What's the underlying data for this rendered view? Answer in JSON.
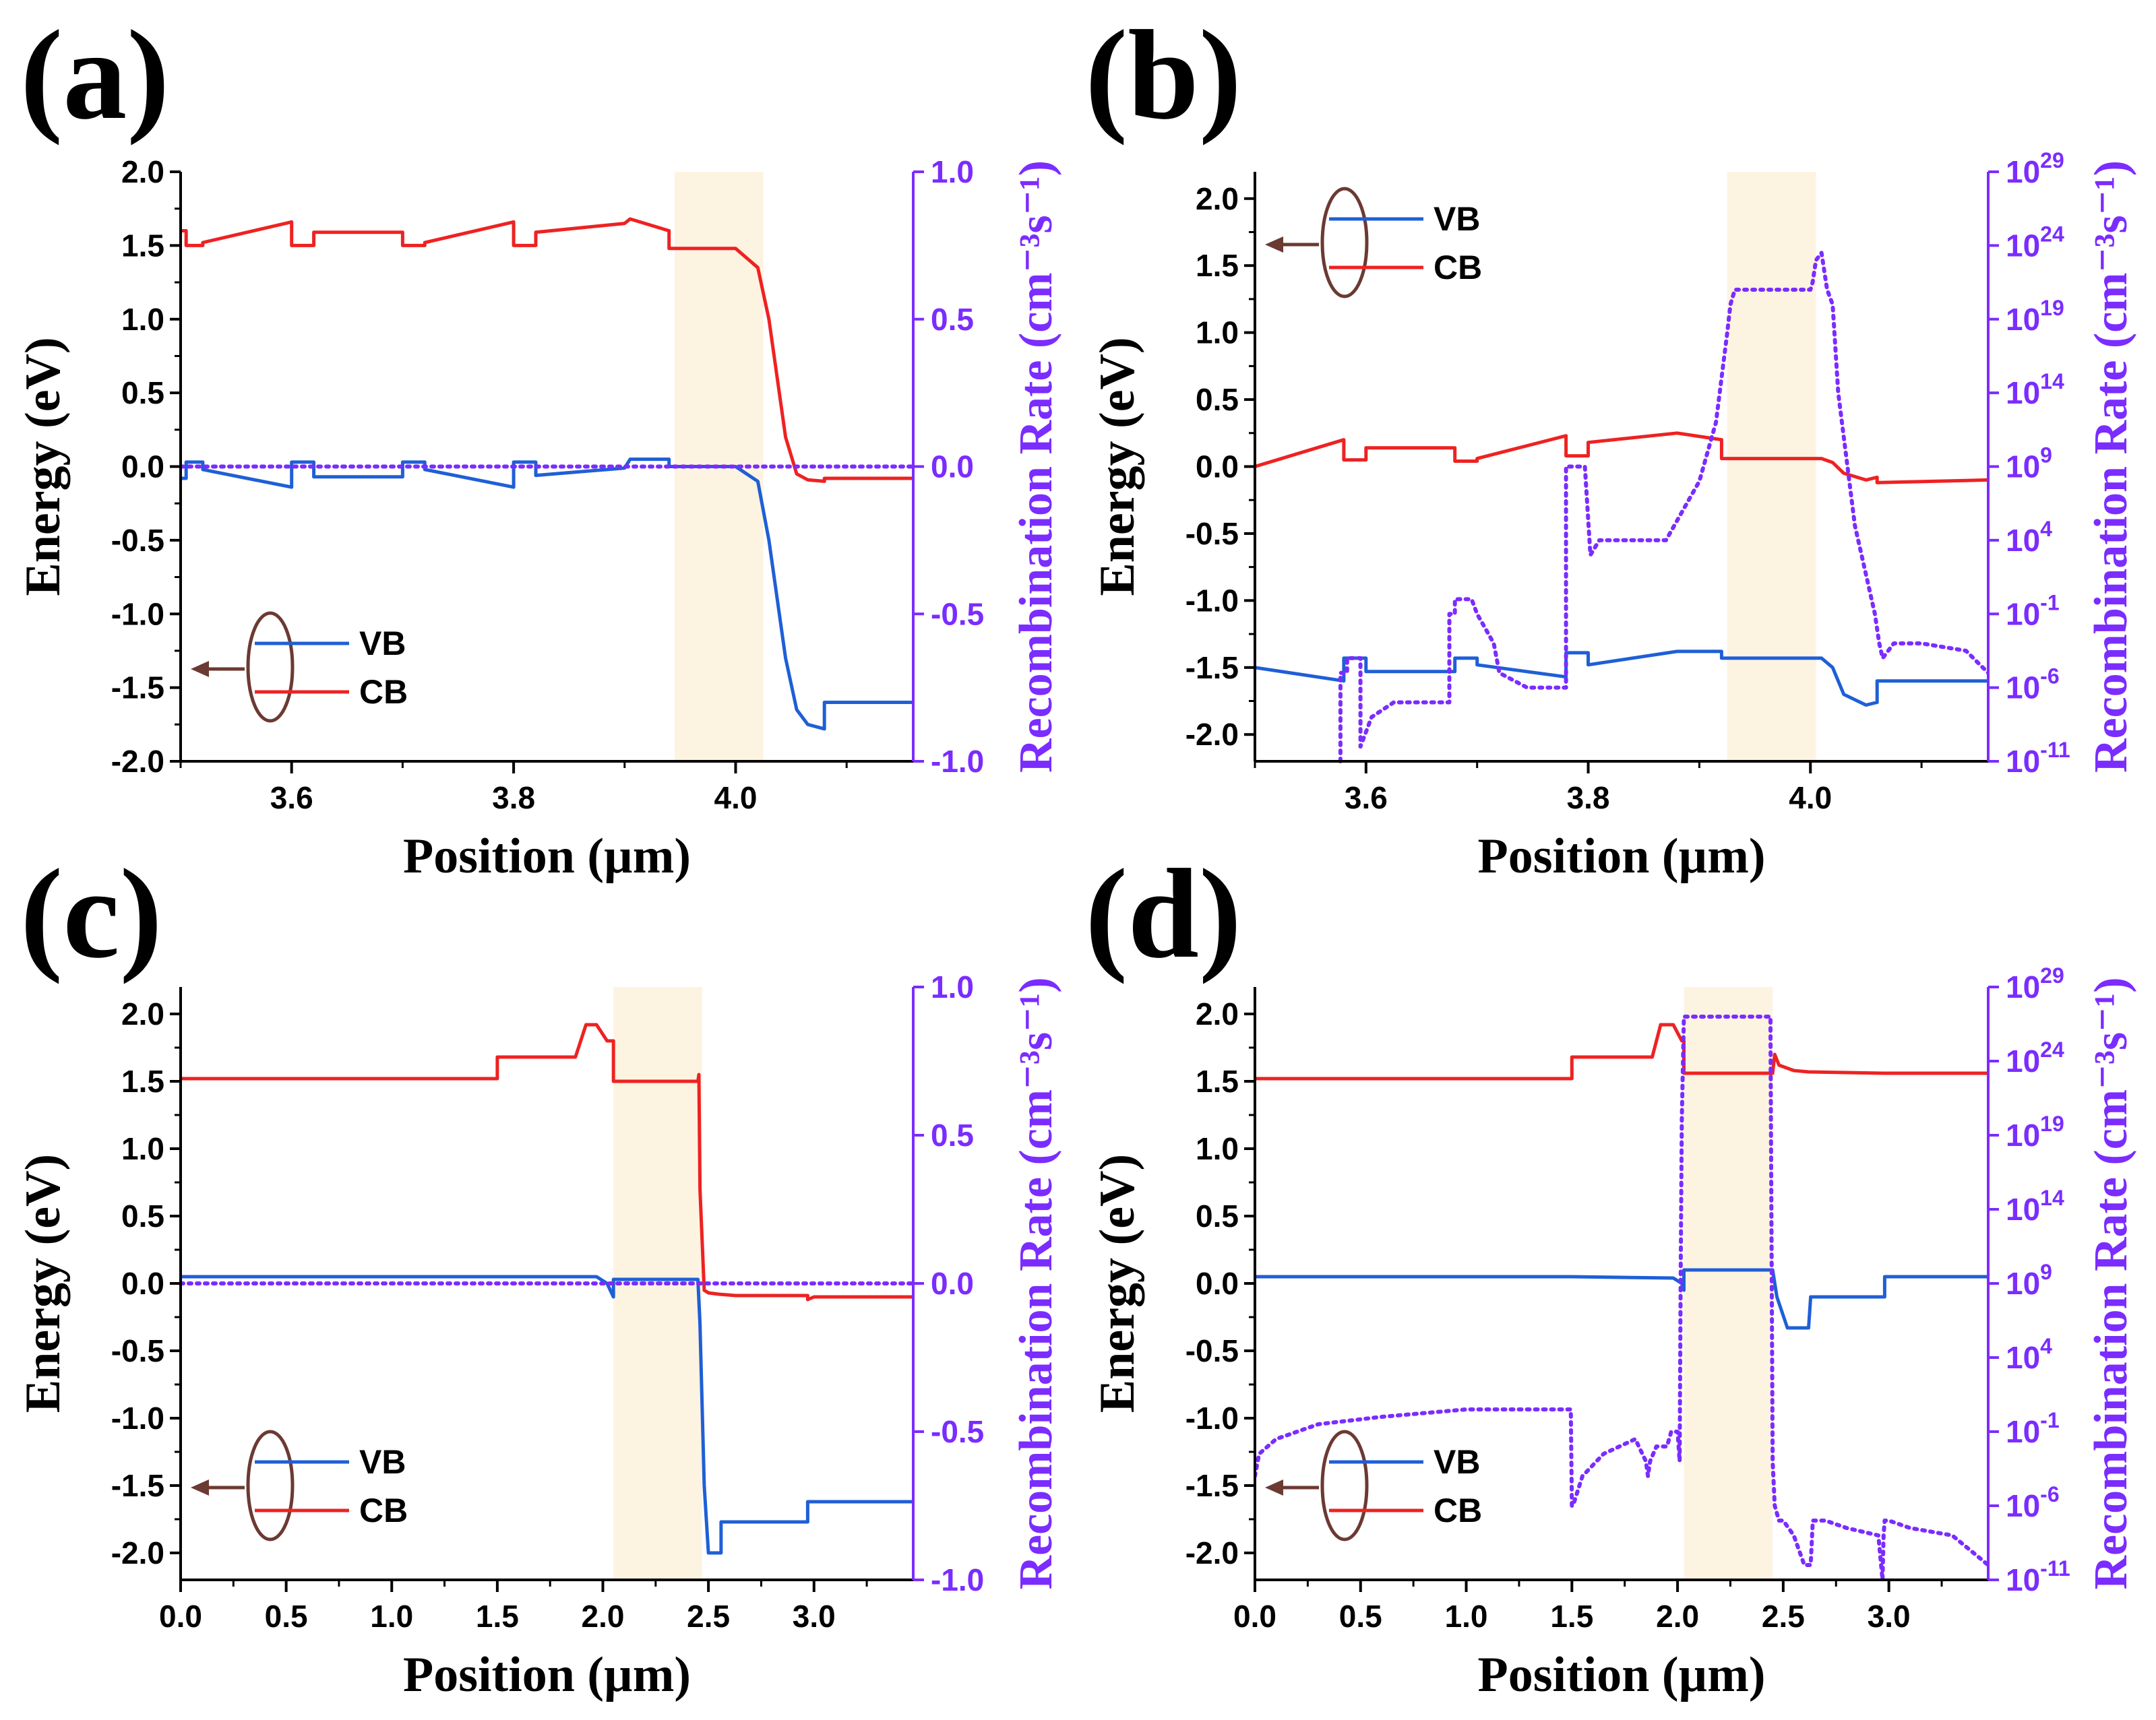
{
  "colors": {
    "vb": "#1f5fd6",
    "cb": "#ee2222",
    "recombination": "#7b2cff",
    "highlight": "#fdf3e1",
    "arrow": "#6b3a32",
    "axis": "#000000"
  },
  "chart_data": [
    {
      "id": "a",
      "label": "(a)",
      "type": "line",
      "xlabel": "Position (µm)",
      "ylabel": "Energy (eV)",
      "y2label": "Recombination Rate (cm⁻³s⁻¹)",
      "xlim": [
        3.5,
        4.16
      ],
      "ylim": [
        -2.0,
        2.0
      ],
      "y2_scale": "linear",
      "y2lim": [
        -1.0,
        1.0
      ],
      "xticks": [
        3.6,
        3.8,
        4.0
      ],
      "xtick_labels": [
        "3.6",
        "3.8",
        "4.0"
      ],
      "yticks": [
        2.0,
        1.5,
        1.0,
        0.5,
        0.0,
        -0.5,
        -1.0,
        -1.5,
        -2.0
      ],
      "ytick_labels": [
        "2.0",
        "1.5",
        "1.0",
        "0.5",
        "0.0",
        "-0.5",
        "-1.0",
        "-1.5",
        "-2.0"
      ],
      "y2ticks": [
        1.0,
        0.5,
        0.0,
        -0.5,
        -1.0
      ],
      "y2tick_labels": [
        "1.0",
        "0.5",
        "0.0",
        "-0.5",
        "-1.0"
      ],
      "y2tick_exps": [
        "",
        "",
        "",
        "",
        ""
      ],
      "legend": [
        "VB",
        "CB"
      ],
      "legend_position": "bottom-left",
      "highlight_x": [
        3.945,
        4.025
      ],
      "series": [
        {
          "name": "VB",
          "x": [
            3.5,
            3.505,
            3.505,
            3.52,
            3.52,
            3.6,
            3.6,
            3.62,
            3.62,
            3.7,
            3.7,
            3.72,
            3.72,
            3.8,
            3.8,
            3.82,
            3.82,
            3.9,
            3.905,
            3.94,
            3.94,
            4.0,
            4.02,
            4.03,
            4.045,
            4.055,
            4.065,
            4.08,
            4.08,
            4.16
          ],
          "y": [
            -0.08,
            -0.08,
            0.03,
            0.03,
            -0.02,
            -0.14,
            0.03,
            0.03,
            -0.07,
            -0.07,
            0.03,
            0.03,
            -0.02,
            -0.14,
            0.03,
            0.03,
            -0.06,
            -0.01,
            0.05,
            0.05,
            0.0,
            0.0,
            -0.1,
            -0.5,
            -1.3,
            -1.65,
            -1.75,
            -1.78,
            -1.6,
            -1.6
          ]
        },
        {
          "name": "CB",
          "x": [
            3.5,
            3.505,
            3.505,
            3.52,
            3.52,
            3.6,
            3.6,
            3.62,
            3.62,
            3.7,
            3.7,
            3.72,
            3.72,
            3.8,
            3.8,
            3.82,
            3.82,
            3.9,
            3.905,
            3.94,
            3.94,
            4.0,
            4.02,
            4.03,
            4.045,
            4.055,
            4.065,
            4.08,
            4.08,
            4.16
          ],
          "y": [
            1.6,
            1.6,
            1.5,
            1.5,
            1.52,
            1.66,
            1.5,
            1.5,
            1.59,
            1.59,
            1.5,
            1.5,
            1.52,
            1.66,
            1.5,
            1.5,
            1.59,
            1.65,
            1.68,
            1.6,
            1.48,
            1.48,
            1.35,
            1.0,
            0.2,
            -0.05,
            -0.09,
            -0.1,
            -0.08,
            -0.08
          ]
        },
        {
          "name": "Recombination",
          "style": "dotted",
          "axis": "y2",
          "x": [
            3.5,
            4.16
          ],
          "y": [
            0.0,
            0.0
          ]
        }
      ]
    },
    {
      "id": "b",
      "label": "(b)",
      "type": "line",
      "xlabel": "Position (µm)",
      "ylabel": "Energy (eV)",
      "y2label": "Recombination Rate (cm⁻³s⁻¹)",
      "xlim": [
        3.5,
        4.16
      ],
      "ylim": [
        -2.2,
        2.2
      ],
      "y2_scale": "log",
      "y2lim": [
        -11,
        29
      ],
      "xticks": [
        3.6,
        3.8,
        4.0
      ],
      "xtick_labels": [
        "3.6",
        "3.8",
        "4.0"
      ],
      "yticks": [
        2.0,
        1.5,
        1.0,
        0.5,
        0.0,
        -0.5,
        -1.0,
        -1.5,
        -2.0
      ],
      "ytick_labels": [
        "2.0",
        "1.5",
        "1.0",
        "0.5",
        "0.0",
        "-0.5",
        "-1.0",
        "-1.5",
        "-2.0"
      ],
      "y2ticks": [
        29,
        24,
        19,
        14,
        9,
        4,
        -1,
        -6,
        -11
      ],
      "y2tick_labels": [
        "10",
        "10",
        "10",
        "10",
        "10",
        "10",
        "10",
        "10",
        "10"
      ],
      "y2tick_exps": [
        "29",
        "24",
        "19",
        "14",
        "9",
        "4",
        "-1",
        "-6",
        "-11"
      ],
      "legend": [
        "VB",
        "CB"
      ],
      "legend_position": "top-left",
      "highlight_x": [
        3.925,
        4.005
      ],
      "series": [
        {
          "name": "VB",
          "x": [
            3.5,
            3.58,
            3.58,
            3.6,
            3.6,
            3.68,
            3.68,
            3.7,
            3.7,
            3.78,
            3.78,
            3.8,
            3.8,
            3.88,
            3.92,
            3.92,
            4.01,
            4.02,
            4.03,
            4.05,
            4.06,
            4.06,
            4.16
          ],
          "y": [
            -1.5,
            -1.6,
            -1.43,
            -1.43,
            -1.53,
            -1.53,
            -1.43,
            -1.43,
            -1.48,
            -1.57,
            -1.39,
            -1.39,
            -1.48,
            -1.38,
            -1.38,
            -1.43,
            -1.43,
            -1.5,
            -1.7,
            -1.78,
            -1.76,
            -1.6,
            -1.6
          ]
        },
        {
          "name": "CB",
          "x": [
            3.5,
            3.58,
            3.58,
            3.6,
            3.6,
            3.68,
            3.68,
            3.7,
            3.7,
            3.78,
            3.78,
            3.8,
            3.8,
            3.88,
            3.92,
            3.92,
            4.01,
            4.02,
            4.03,
            4.05,
            4.06,
            4.06,
            4.16
          ],
          "y": [
            0.0,
            0.2,
            0.05,
            0.05,
            0.14,
            0.14,
            0.04,
            0.04,
            0.06,
            0.23,
            0.08,
            0.08,
            0.18,
            0.25,
            0.2,
            0.06,
            0.06,
            0.03,
            -0.05,
            -0.1,
            -0.08,
            -0.12,
            -0.1
          ]
        },
        {
          "name": "Recombination",
          "style": "dotted",
          "axis": "y2",
          "x": [
            3.577,
            3.577,
            3.583,
            3.583,
            3.595,
            3.595,
            3.605,
            3.625,
            3.675,
            3.675,
            3.68,
            3.68,
            3.695,
            3.7,
            3.715,
            3.72,
            3.745,
            3.78,
            3.78,
            3.785,
            3.785,
            3.797,
            3.797,
            3.802,
            3.802,
            3.81,
            3.87,
            3.9,
            3.915,
            3.925,
            3.928,
            3.932,
            3.938,
            3.942,
            4.0,
            4.002,
            4.005,
            4.01,
            4.015,
            4.02,
            4.025,
            4.04,
            4.052,
            4.058,
            4.062,
            4.065,
            4.075,
            4.1,
            4.14,
            4.16
          ],
          "y": [
            -11,
            -5,
            -5,
            -4,
            -4,
            -10,
            -8,
            -7,
            -7,
            -1,
            -1,
            0,
            0,
            -1,
            -3,
            -5,
            -6,
            -6,
            9,
            9,
            9,
            9,
            9,
            3,
            3,
            4,
            4,
            8,
            12,
            18,
            20,
            21,
            21,
            21,
            21,
            21.5,
            23,
            23.5,
            21,
            20,
            14,
            5,
            1,
            -1,
            -3,
            -4,
            -3,
            -3,
            -3.5,
            -5
          ]
        }
      ]
    },
    {
      "id": "c",
      "label": "(c)",
      "type": "line",
      "xlabel": "Position (µm)",
      "ylabel": "Energy (eV)",
      "y2label": "Recombination Rate (cm⁻³s⁻¹)",
      "xlim": [
        0.0,
        3.47
      ],
      "ylim": [
        -2.2,
        2.2
      ],
      "y2_scale": "linear",
      "y2lim": [
        -1.0,
        1.0
      ],
      "xticks": [
        0.0,
        0.5,
        1.0,
        1.5,
        2.0,
        2.5,
        3.0
      ],
      "xtick_labels": [
        "0.0",
        "0.5",
        "1.0",
        "1.5",
        "2.0",
        "2.5",
        "3.0"
      ],
      "yticks": [
        2.0,
        1.5,
        1.0,
        0.5,
        0.0,
        -0.5,
        -1.0,
        -1.5,
        -2.0
      ],
      "ytick_labels": [
        "2.0",
        "1.5",
        "1.0",
        "0.5",
        "0.0",
        "-0.5",
        "-1.0",
        "-1.5",
        "-2.0"
      ],
      "y2ticks": [
        1.0,
        0.5,
        0.0,
        -0.5,
        -1.0
      ],
      "y2tick_labels": [
        "1.0",
        "0.5",
        "0.0",
        "-0.5",
        "-1.0"
      ],
      "y2tick_exps": [
        "",
        "",
        "",
        "",
        ""
      ],
      "legend": [
        "VB",
        "CB"
      ],
      "legend_position": "bottom-left",
      "highlight_x": [
        2.05,
        2.47
      ],
      "series": [
        {
          "name": "VB",
          "x": [
            0.0,
            1.5,
            1.5,
            1.97,
            2.02,
            2.05,
            2.05,
            2.45,
            2.46,
            2.48,
            2.5,
            2.56,
            2.56,
            2.63,
            2.63,
            2.97,
            2.97,
            3.47
          ],
          "y": [
            0.05,
            0.05,
            0.05,
            0.05,
            0.0,
            -0.1,
            0.03,
            0.03,
            -0.3,
            -1.5,
            -2.0,
            -2.0,
            -1.77,
            -1.77,
            -1.77,
            -1.77,
            -1.62,
            -1.62
          ]
        },
        {
          "name": "CB",
          "x": [
            0.0,
            1.5,
            1.5,
            1.87,
            1.92,
            1.97,
            2.02,
            2.05,
            2.05,
            2.45,
            2.455,
            2.46,
            2.48,
            2.5,
            2.55,
            2.63,
            2.97,
            2.97,
            3.0,
            3.47
          ],
          "y": [
            1.52,
            1.52,
            1.68,
            1.68,
            1.92,
            1.92,
            1.8,
            1.8,
            1.5,
            1.5,
            1.55,
            0.7,
            -0.05,
            -0.07,
            -0.08,
            -0.09,
            -0.09,
            -0.12,
            -0.1,
            -0.1
          ]
        },
        {
          "name": "Recombination",
          "style": "dotted",
          "axis": "y2",
          "x": [
            0.0,
            3.47
          ],
          "y": [
            0.0,
            0.0
          ]
        }
      ]
    },
    {
      "id": "d",
      "label": "(d)",
      "type": "line",
      "xlabel": "Position (µm)",
      "ylabel": "Energy (eV)",
      "y2label": "Recombination Rate (cm⁻³s⁻¹)",
      "xlim": [
        0.0,
        3.47
      ],
      "ylim": [
        -2.2,
        2.2
      ],
      "y2_scale": "log",
      "y2lim": [
        -11,
        29
      ],
      "xticks": [
        0.0,
        0.5,
        1.0,
        1.5,
        2.0,
        2.5,
        3.0
      ],
      "xtick_labels": [
        "0.0",
        "0.5",
        "1.0",
        "1.5",
        "2.0",
        "2.5",
        "3.0"
      ],
      "yticks": [
        2.0,
        1.5,
        1.0,
        0.5,
        0.0,
        -0.5,
        -1.0,
        -1.5,
        -2.0
      ],
      "ytick_labels": [
        "2.0",
        "1.5",
        "1.0",
        "0.5",
        "0.0",
        "-0.5",
        "-1.0",
        "-1.5",
        "-2.0"
      ],
      "y2ticks": [
        29,
        24,
        19,
        14,
        9,
        4,
        -1,
        -6,
        -11
      ],
      "y2tick_labels": [
        "10",
        "10",
        "10",
        "10",
        "10",
        "10",
        "10",
        "10",
        "10"
      ],
      "y2tick_exps": [
        "29",
        "24",
        "19",
        "14",
        "9",
        "4",
        "-1",
        "-6",
        "-11"
      ],
      "legend": [
        "VB",
        "CB"
      ],
      "legend_position": "bottom-left",
      "highlight_x": [
        2.03,
        2.45
      ],
      "series": [
        {
          "name": "VB",
          "x": [
            0.0,
            1.5,
            1.5,
            1.98,
            2.02,
            2.03,
            2.03,
            2.45,
            2.47,
            2.52,
            2.62,
            2.63,
            2.98,
            2.98,
            3.47
          ],
          "y": [
            0.05,
            0.05,
            0.05,
            0.04,
            0.0,
            -0.05,
            0.1,
            0.1,
            -0.1,
            -0.33,
            -0.33,
            -0.1,
            -0.1,
            0.05,
            0.05
          ]
        },
        {
          "name": "CB",
          "x": [
            0.0,
            1.5,
            1.5,
            1.88,
            1.92,
            1.98,
            2.02,
            2.03,
            2.03,
            2.45,
            2.46,
            2.48,
            2.55,
            2.62,
            2.98,
            3.47
          ],
          "y": [
            1.52,
            1.52,
            1.68,
            1.68,
            1.92,
            1.92,
            1.8,
            1.8,
            1.56,
            1.56,
            1.7,
            1.62,
            1.58,
            1.57,
            1.56,
            1.56
          ]
        },
        {
          "name": "Recombination",
          "style": "dotted",
          "axis": "y2",
          "x": [
            0.0,
            0.02,
            0.1,
            0.3,
            0.6,
            1.0,
            1.45,
            1.495,
            1.5,
            1.505,
            1.55,
            1.65,
            1.8,
            1.85,
            1.86,
            1.87,
            1.9,
            1.92,
            1.95,
            1.97,
            2.0,
            2.01,
            2.015,
            2.02,
            2.03,
            2.03,
            2.44,
            2.44,
            2.45,
            2.46,
            2.48,
            2.5,
            2.55,
            2.6,
            2.63,
            2.64,
            2.7,
            2.8,
            2.95,
            2.97,
            2.975,
            2.98,
            3.0,
            3.1,
            3.3,
            3.47
          ],
          "y": [
            -4,
            -2.5,
            -1.5,
            -0.5,
            0.0,
            0.5,
            0.5,
            0.5,
            -6,
            -6,
            -4,
            -2.5,
            -1.5,
            -3,
            -4,
            -3,
            -2,
            -2,
            -2,
            -1,
            -1,
            -3,
            10,
            20,
            27,
            27,
            27,
            26,
            -3,
            -6,
            -7,
            -7,
            -8,
            -10,
            -10,
            -7,
            -7,
            -7.5,
            -8,
            -11,
            -8,
            -7,
            -7,
            -7.5,
            -8,
            -10
          ]
        }
      ]
    }
  ]
}
